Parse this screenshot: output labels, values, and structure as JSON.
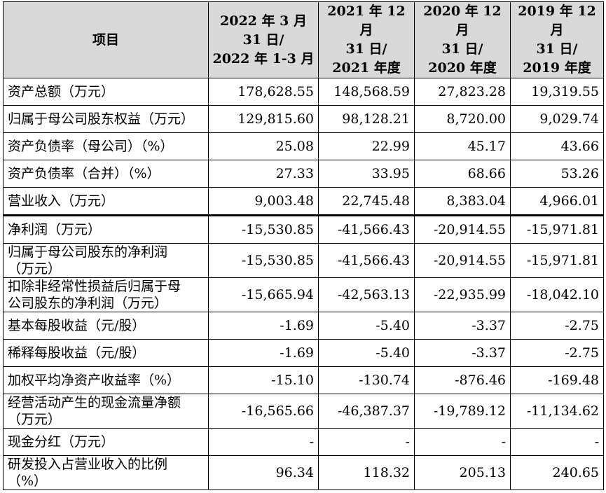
{
  "headers": [
    "项目",
    [
      "2022 年 3 月",
      "31 日/",
      "2022 年 1-3 月"
    ],
    [
      "2021 年 12 月",
      "31 日/",
      "2021 年度"
    ],
    [
      "2020 年 12 月",
      "31 日/",
      "2020 年度"
    ],
    [
      "2019 年 12 月",
      "31 日/",
      "2019 年度"
    ]
  ],
  "rows": [
    {
      "label": [
        "资产总额（万元）"
      ],
      "values": [
        "178,628.55",
        "148,568.59",
        "27,823.28",
        "19,319.55"
      ]
    },
    {
      "label": [
        "归属于母公司股东权益（万元）"
      ],
      "values": [
        "129,815.60",
        "98,128.21",
        "8,720.00",
        "9,029.74"
      ]
    },
    {
      "label": [
        "资产负债率（母公司）（%）"
      ],
      "values": [
        "25.08",
        "22.99",
        "45.17",
        "43.66"
      ]
    },
    {
      "label": [
        "资产负债率（合并）（%）"
      ],
      "values": [
        "27.33",
        "33.95",
        "68.66",
        "53.26"
      ]
    },
    {
      "label": [
        "营业收入（万元）"
      ],
      "values": [
        "9,003.48",
        "22,745.48",
        "8,383.04",
        "4,966.01"
      ]
    },
    {
      "label": [
        "净利润（万元）"
      ],
      "values": [
        "-15,530.85",
        "-41,566.43",
        "-20,914.55",
        "-15,971.81"
      ]
    },
    {
      "label": [
        "归属于母公司股东的净利润",
        "（万元）"
      ],
      "values": [
        "-15,530.85",
        "-41,566.43",
        "-20,914.55",
        "-15,971.81"
      ]
    },
    {
      "label": [
        "扣除非经常性损益后归属于母",
        "公司股东的净利润（万元）"
      ],
      "values": [
        "-15,665.94",
        "-42,563.13",
        "-22,935.99",
        "-18,042.10"
      ]
    },
    {
      "label": [
        "基本每股收益（元/股）"
      ],
      "values": [
        "-1.69",
        "-5.40",
        "-3.37",
        "-2.75"
      ]
    },
    {
      "label": [
        "稀释每股收益（元/股）"
      ],
      "values": [
        "-1.69",
        "-5.40",
        "-3.37",
        "-2.75"
      ]
    },
    {
      "label": [
        "加权平均净资产收益率（%）"
      ],
      "values": [
        "-15.10",
        "-130.74",
        "-876.46",
        "-169.48"
      ]
    },
    {
      "label": [
        "经营活动产生的现金流量净额",
        "（万元）"
      ],
      "values": [
        "-16,565.66",
        "-46,387.37",
        "-19,789.12",
        "-11,134.62"
      ]
    },
    {
      "label": [
        "现金分红（万元）"
      ],
      "values": [
        "-",
        "-",
        "-",
        "-"
      ]
    },
    {
      "label": [
        "研发投入占营业收入的比例",
        "（%）"
      ],
      "values": [
        "96.34",
        "118.32",
        "205.13",
        "240.65"
      ]
    }
  ]
}
